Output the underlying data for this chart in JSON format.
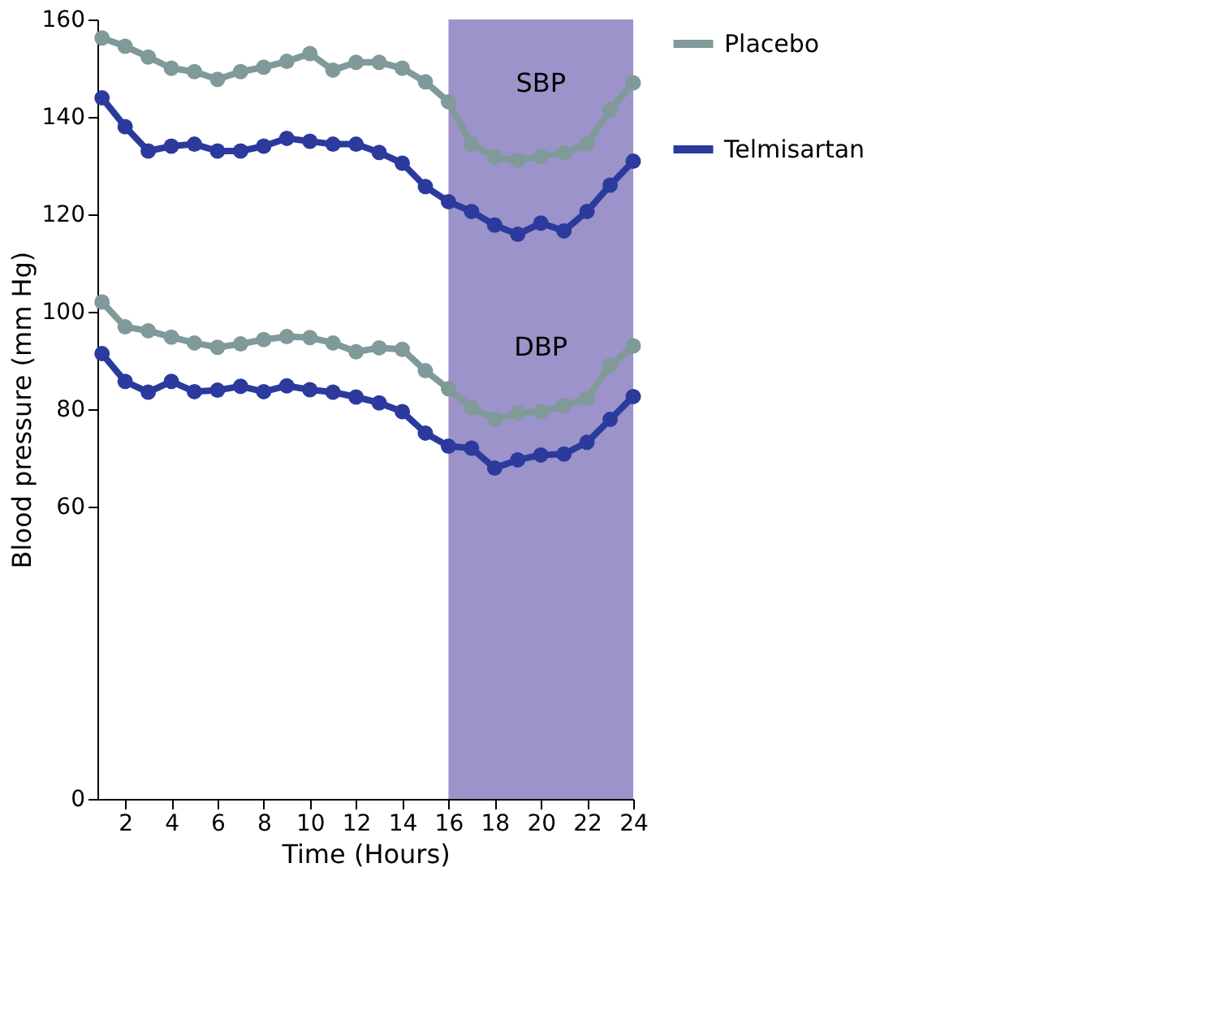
{
  "chart_data": {
    "type": "line",
    "xlabel": "Time (Hours)",
    "ylabel": "Blood pressure (mm Hg)",
    "x": [
      1,
      2,
      3,
      4,
      5,
      6,
      7,
      8,
      9,
      10,
      11,
      12,
      13,
      14,
      15,
      16,
      17,
      18,
      19,
      20,
      21,
      22,
      23,
      24
    ],
    "series": [
      {
        "name": "Placebo",
        "color": "#7f9a98",
        "values": [
          156.2,
          154.5,
          152.3,
          150,
          149.3,
          147.7,
          149.3,
          150.2,
          151.4,
          153,
          149.6,
          151.2,
          151.2,
          150,
          147.2,
          143.1,
          134.4,
          131.8,
          131.1,
          131.9,
          132.6,
          134.4,
          141.4,
          147
        ]
      },
      {
        "name": "Telmisartan",
        "color": "#2b3a9c",
        "values": [
          143.9,
          138,
          133,
          134,
          134.4,
          133,
          133,
          134,
          135.6,
          135,
          134.4,
          134.4,
          132.7,
          130.5,
          125.7,
          122.6,
          120.6,
          117.8,
          115.9,
          118.2,
          116.6,
          120.6,
          126,
          130.9
        ]
      },
      {
        "color": "#7f9a98",
        "values": [
          102,
          96.9,
          96.1,
          94.8,
          93.6,
          92.7,
          93.4,
          94.3,
          94.9,
          94.7,
          93.6,
          91.8,
          92.6,
          92.3,
          87.9,
          84.2,
          80.3,
          77.9,
          79.2,
          79.5,
          80.7,
          82.2,
          89,
          93
        ]
      },
      {
        "color": "#2b3a9c",
        "values": [
          91.4,
          85.7,
          83.5,
          85.7,
          83.6,
          83.9,
          84.7,
          83.6,
          84.8,
          84,
          83.5,
          82.5,
          81.3,
          79.5,
          75.1,
          72.4,
          72,
          67.9,
          69.6,
          70.6,
          70.8,
          73.2,
          77.9,
          82.6
        ]
      }
    ],
    "xlim": [
      0.8,
      24
    ],
    "xticks": [
      2,
      4,
      6,
      8,
      10,
      12,
      14,
      16,
      18,
      20,
      22,
      24
    ],
    "ylim": [
      0,
      160
    ],
    "yticks": [
      0,
      60,
      80,
      100,
      120,
      140,
      160
    ],
    "bands": [
      {
        "axis": "x",
        "from": 16,
        "to": 24,
        "color": "#9b93c9"
      }
    ],
    "annotations": [
      "SBP",
      "DBP"
    ],
    "legend": "right",
    "grid": false,
    "marker": "circle",
    "line_style": "solid"
  }
}
